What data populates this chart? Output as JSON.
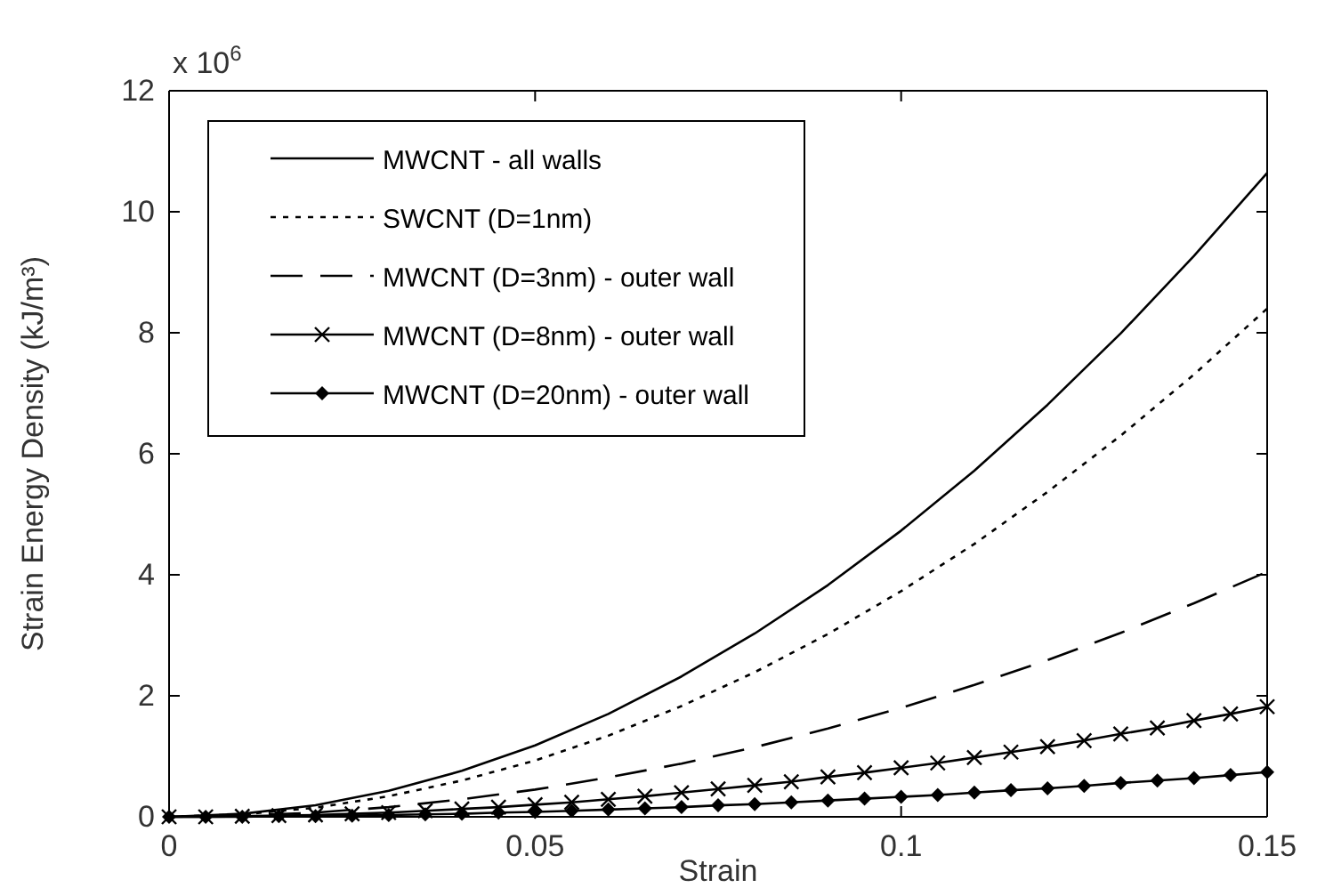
{
  "chart_data": {
    "type": "line",
    "xlabel": "Strain",
    "ylabel": "Strain Energy Density (kJ/m³)",
    "annotations": [
      "x 10$^{6}$"
    ],
    "xlim": [
      0,
      0.15
    ],
    "ylim": [
      0,
      12
    ],
    "xticks": [
      0,
      0.05,
      0.1,
      0.15
    ],
    "yticks": [
      0,
      2,
      4,
      6,
      8,
      10,
      12
    ],
    "grid": false,
    "legend": "top left",
    "series": [
      {
        "name": "MWCNT - all walls",
        "color": "#000000",
        "line_style": "solid",
        "marker": "none",
        "x": [
          0,
          0.01,
          0.02,
          0.03,
          0.04,
          0.05,
          0.06,
          0.07,
          0.08,
          0.09,
          0.1,
          0.11,
          0.12,
          0.13,
          0.14,
          0.15
        ],
        "values": [
          0,
          0.05,
          0.19,
          0.43,
          0.76,
          1.18,
          1.7,
          2.32,
          3.03,
          3.83,
          4.73,
          5.72,
          6.81,
          7.99,
          9.27,
          10.64
        ]
      },
      {
        "name": "SWCNT (D=1nm)",
        "color": "#000000",
        "line_style": "dotted",
        "marker": "none",
        "x": [
          0,
          0.01,
          0.02,
          0.03,
          0.04,
          0.05,
          0.06,
          0.07,
          0.08,
          0.09,
          0.1,
          0.11,
          0.12,
          0.13,
          0.14,
          0.15
        ],
        "values": [
          0,
          0.04,
          0.15,
          0.34,
          0.6,
          0.93,
          1.34,
          1.83,
          2.39,
          3.02,
          3.73,
          4.51,
          5.37,
          6.3,
          7.31,
          8.4
        ]
      },
      {
        "name": "MWCNT (D=3nm) - outer wall",
        "color": "#000000",
        "line_style": "dashed",
        "marker": "none",
        "x": [
          0,
          0.01,
          0.02,
          0.03,
          0.04,
          0.05,
          0.06,
          0.07,
          0.08,
          0.09,
          0.1,
          0.11,
          0.12,
          0.13,
          0.14,
          0.15
        ],
        "values": [
          0,
          0.02,
          0.07,
          0.16,
          0.29,
          0.45,
          0.65,
          0.88,
          1.15,
          1.46,
          1.8,
          2.18,
          2.59,
          3.04,
          3.53,
          4.05
        ]
      },
      {
        "name": "MWCNT (D=8nm) - outer wall",
        "color": "#000000",
        "line_style": "solid",
        "marker": "cross",
        "x": [
          0,
          0.005,
          0.01,
          0.015,
          0.02,
          0.025,
          0.03,
          0.035,
          0.04,
          0.045,
          0.05,
          0.055,
          0.06,
          0.065,
          0.07,
          0.075,
          0.08,
          0.085,
          0.09,
          0.095,
          0.1,
          0.105,
          0.11,
          0.115,
          0.12,
          0.125,
          0.13,
          0.135,
          0.14,
          0.145,
          0.15
        ],
        "values": [
          0,
          0,
          0.01,
          0.02,
          0.03,
          0.05,
          0.07,
          0.1,
          0.13,
          0.16,
          0.2,
          0.24,
          0.29,
          0.34,
          0.4,
          0.46,
          0.52,
          0.58,
          0.66,
          0.73,
          0.81,
          0.89,
          0.98,
          1.07,
          1.16,
          1.26,
          1.37,
          1.47,
          1.59,
          1.7,
          1.82
        ]
      },
      {
        "name": "MWCNT (D=20nm) - outer wall",
        "color": "#000000",
        "line_style": "solid",
        "marker": "diamond",
        "x": [
          0,
          0.005,
          0.01,
          0.015,
          0.02,
          0.025,
          0.03,
          0.035,
          0.04,
          0.045,
          0.05,
          0.055,
          0.06,
          0.065,
          0.07,
          0.075,
          0.08,
          0.085,
          0.09,
          0.095,
          0.1,
          0.105,
          0.11,
          0.115,
          0.12,
          0.125,
          0.13,
          0.135,
          0.14,
          0.145,
          0.15
        ],
        "values": [
          0,
          0,
          0,
          0.01,
          0.01,
          0.02,
          0.03,
          0.04,
          0.05,
          0.07,
          0.08,
          0.1,
          0.12,
          0.14,
          0.16,
          0.19,
          0.21,
          0.24,
          0.27,
          0.3,
          0.33,
          0.36,
          0.4,
          0.44,
          0.47,
          0.51,
          0.56,
          0.6,
          0.64,
          0.69,
          0.74
        ]
      }
    ]
  }
}
